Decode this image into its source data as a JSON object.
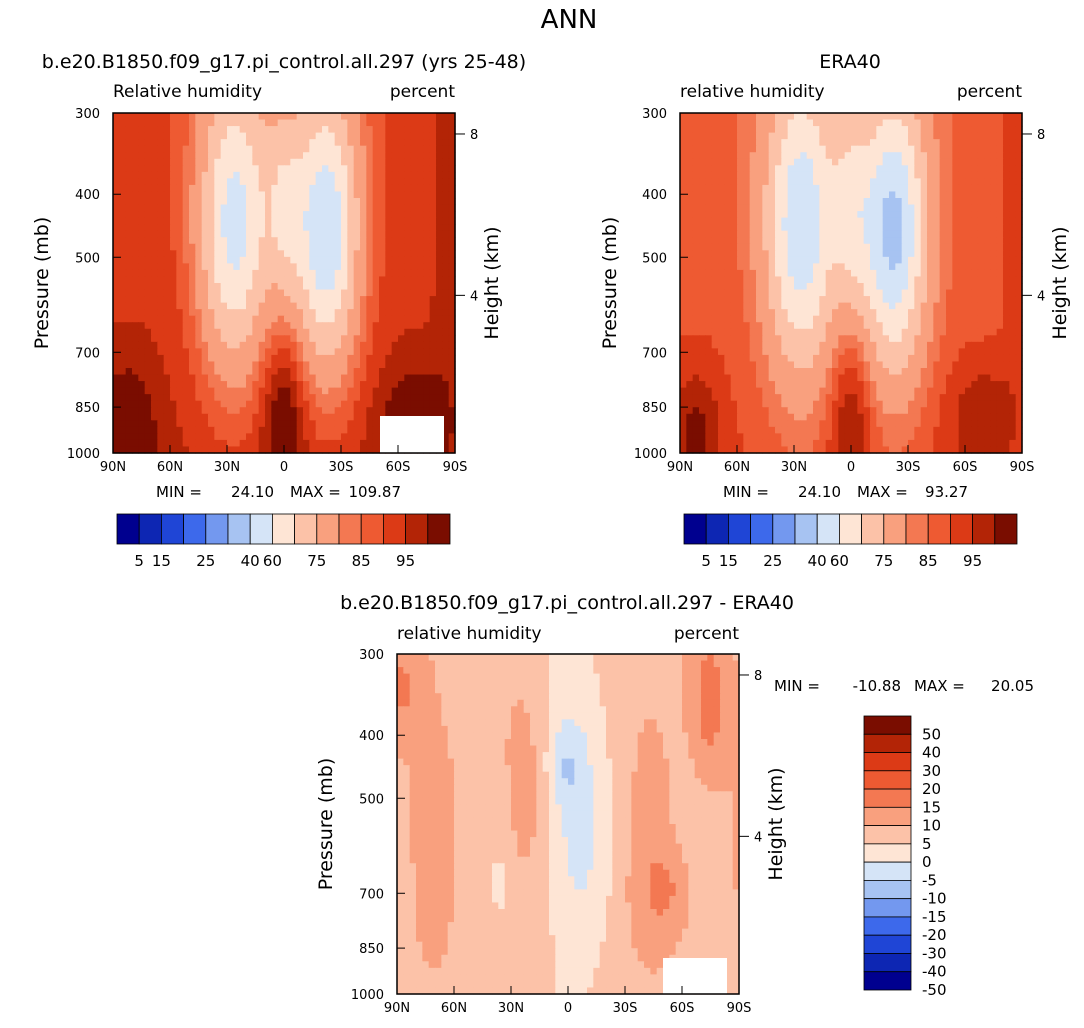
{
  "figure_title": "ANN",
  "palette": {
    "sequential": [
      "#00008f",
      "#0d26b3",
      "#1f45d6",
      "#3d69eb",
      "#7398ef",
      "#a7c3f2",
      "#d5e4f7",
      "#fee5d5",
      "#fcc2a8",
      "#f9a07e",
      "#f37852",
      "#ee5a32",
      "#dc3a16",
      "#b32406",
      "#7a0d00"
    ],
    "difference": [
      "#00008f",
      "#0d26b3",
      "#1f45d6",
      "#3d69eb",
      "#7398ef",
      "#a7c3f2",
      "#d5e4f7",
      "#fee5d5",
      "#fcc2a8",
      "#f9a07e",
      "#f37852",
      "#ee5a32",
      "#dc3a16",
      "#b32406",
      "#7a0d00"
    ]
  },
  "chart_data": [
    {
      "type": "heatmap",
      "title": "b.e20.B1850.f09_g17.pi_control.all.297 (yrs 25-48)",
      "left_label": "Relative humidity",
      "right_label": "percent",
      "xlabel": "",
      "ylabel": "Pressure (mb)",
      "y2label": "Height (km)",
      "x_ticks": [
        "90N",
        "60N",
        "30N",
        "0",
        "30S",
        "60S",
        "90S"
      ],
      "y_ticks": [
        "300",
        "400",
        "500",
        "700",
        "850",
        "1000"
      ],
      "y2_ticks": [
        "8",
        "4"
      ],
      "min_label": "MIN =",
      "min_value": "24.10",
      "max_label": "MAX =",
      "max_value": "109.87",
      "colorbar_labels": [
        "5",
        "15",
        "25",
        "40",
        "60",
        "75",
        "85",
        "95"
      ],
      "colorbar_levels": [
        5,
        10,
        15,
        20,
        25,
        30,
        40,
        50,
        60,
        70,
        75,
        80,
        85,
        90,
        95
      ],
      "ylim": [
        1000,
        300
      ],
      "xlim": [
        90,
        -90
      ],
      "variant": "model"
    },
    {
      "type": "heatmap",
      "title": "ERA40",
      "left_label": "relative humidity",
      "right_label": "percent",
      "xlabel": "",
      "ylabel": "Pressure (mb)",
      "y2label": "Height (km)",
      "x_ticks": [
        "90N",
        "60N",
        "30N",
        "0",
        "30S",
        "60S",
        "90S"
      ],
      "y_ticks": [
        "300",
        "400",
        "500",
        "700",
        "850",
        "1000"
      ],
      "y2_ticks": [
        "8",
        "4"
      ],
      "min_label": "MIN =",
      "min_value": "24.10",
      "max_label": "MAX =",
      "max_value": "93.27",
      "colorbar_labels": [
        "5",
        "15",
        "25",
        "40",
        "60",
        "75",
        "85",
        "95"
      ],
      "colorbar_levels": [
        5,
        10,
        15,
        20,
        25,
        30,
        40,
        50,
        60,
        70,
        75,
        80,
        85,
        90,
        95
      ],
      "ylim": [
        1000,
        300
      ],
      "xlim": [
        90,
        -90
      ],
      "variant": "obs"
    },
    {
      "type": "heatmap",
      "title": "b.e20.B1850.f09_g17.pi_control.all.297 - ERA40",
      "left_label": "relative humidity",
      "right_label": "percent",
      "xlabel": "",
      "ylabel": "Pressure (mb)",
      "y2label": "Height (km)",
      "x_ticks": [
        "90N",
        "60N",
        "30N",
        "0",
        "30S",
        "60S",
        "90S"
      ],
      "y_ticks": [
        "300",
        "400",
        "500",
        "700",
        "850",
        "1000"
      ],
      "y2_ticks": [
        "8",
        "4"
      ],
      "min_label": "MIN =",
      "min_value": "-10.88",
      "max_label": "MAX =",
      "max_value": "20.05",
      "colorbar_labels": [
        "50",
        "40",
        "30",
        "20",
        "15",
        "10",
        "5",
        "0",
        "-5",
        "-10",
        "-15",
        "-20",
        "-30",
        "-40",
        "-50"
      ],
      "colorbar_levels": [
        -50,
        -40,
        -30,
        -20,
        -15,
        -10,
        -5,
        0,
        5,
        10,
        15,
        20,
        30,
        40,
        50
      ],
      "ylim": [
        1000,
        300
      ],
      "xlim": [
        90,
        -90
      ],
      "variant": "diff"
    }
  ]
}
